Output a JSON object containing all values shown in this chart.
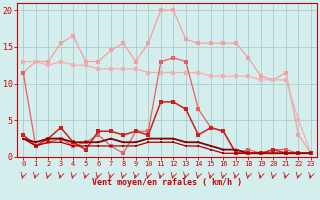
{
  "x": [
    0,
    1,
    2,
    3,
    4,
    5,
    6,
    7,
    8,
    9,
    10,
    11,
    12,
    13,
    14,
    15,
    16,
    17,
    18,
    19,
    20,
    21,
    22,
    23
  ],
  "line_lpink1": [
    11.5,
    13.0,
    13.0,
    15.5,
    16.5,
    13.0,
    13.0,
    14.5,
    15.5,
    13.0,
    15.5,
    20.0,
    20.0,
    16.0,
    15.5,
    15.5,
    15.5,
    15.5,
    13.5,
    11.0,
    10.5,
    11.5,
    3.0,
    0.5
  ],
  "line_lpink2": [
    13.0,
    13.0,
    12.5,
    13.0,
    12.5,
    12.5,
    12.0,
    12.0,
    12.0,
    12.0,
    11.5,
    11.5,
    11.5,
    11.5,
    11.5,
    11.0,
    11.0,
    11.0,
    11.0,
    10.5,
    10.5,
    10.5,
    5.0,
    0.5
  ],
  "line_mpink": [
    11.5,
    1.5,
    2.0,
    2.5,
    1.5,
    2.0,
    3.0,
    1.5,
    0.5,
    3.5,
    3.5,
    13.0,
    13.5,
    13.0,
    6.5,
    4.0,
    3.5,
    0.5,
    1.0,
    0.5,
    1.0,
    1.0,
    0.5,
    0.5
  ],
  "line_dred1": [
    3.0,
    1.5,
    2.5,
    4.0,
    2.0,
    1.0,
    3.5,
    3.5,
    3.0,
    3.5,
    3.0,
    7.5,
    7.5,
    6.5,
    3.0,
    4.0,
    3.5,
    0.5,
    0.5,
    0.5,
    1.0,
    0.5,
    0.5,
    0.5
  ],
  "line_dred2": [
    2.5,
    2.0,
    2.5,
    2.5,
    2.0,
    2.0,
    2.0,
    2.5,
    2.0,
    2.0,
    2.5,
    2.5,
    2.5,
    2.0,
    2.0,
    1.5,
    1.0,
    1.0,
    0.5,
    0.5,
    0.5,
    0.5,
    0.5,
    0.5
  ],
  "line_dred3": [
    2.5,
    1.5,
    2.0,
    2.0,
    1.5,
    1.5,
    1.5,
    1.5,
    1.5,
    1.5,
    2.0,
    2.0,
    2.0,
    1.5,
    1.5,
    1.0,
    0.5,
    0.5,
    0.5,
    0.5,
    0.5,
    0.5,
    0.5,
    0.5
  ],
  "color_lpink1": "#f5a0a0",
  "color_lpink2": "#f0b0b0",
  "color_mpink": "#e86060",
  "color_dred1": "#cc2020",
  "color_dred2": "#880000",
  "color_dred3": "#aa0000",
  "bg_color": "#d4eeee",
  "grid_color": "#aacccc",
  "text_color": "#cc0000",
  "xlabel": "Vent moyen/en rafales ( km/h )",
  "ylim": [
    0,
    21
  ],
  "yticks": [
    0,
    5,
    10,
    15,
    20
  ]
}
